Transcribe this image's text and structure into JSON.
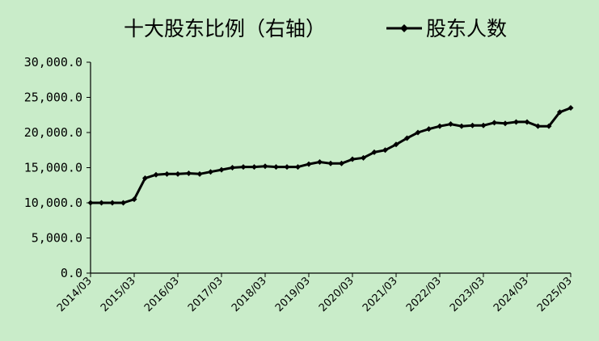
{
  "chart_data": {
    "type": "line",
    "legend": {
      "items": [
        {
          "label": "十大股东比例（右轴）",
          "marker": "none"
        },
        {
          "label": "股东人数",
          "marker": "line-diamond"
        }
      ],
      "position": "top"
    },
    "yaxis": {
      "ticks": [
        "0.0",
        "5,000.0",
        "10,000.0",
        "15,000.0",
        "20,000.0",
        "25,000.0",
        "30,000.0"
      ],
      "ylim": [
        0,
        30000
      ]
    },
    "xaxis": {
      "ticks": [
        "2014/03",
        "2015/03",
        "2016/03",
        "2017/03",
        "2018/03",
        "2019/03",
        "2020/03",
        "2021/03",
        "2022/03",
        "2023/03",
        "2024/03",
        "2025/03"
      ]
    },
    "grid": false,
    "series": [
      {
        "name": "股东人数",
        "color": "#000000",
        "values": [
          10000,
          10000,
          10000,
          10000,
          10500,
          13500,
          14000,
          14100,
          14100,
          14200,
          14100,
          14400,
          14700,
          15000,
          15100,
          15100,
          15200,
          15100,
          15100,
          15100,
          15500,
          15800,
          15600,
          15600,
          16200,
          16400,
          17200,
          17500,
          18300,
          19200,
          20000,
          20500,
          20900,
          21200,
          20900,
          21000,
          21000,
          21400,
          21300,
          21500,
          21500,
          20900,
          20900,
          22900,
          23500
        ]
      }
    ]
  },
  "colors": {
    "background": "#c9ecc9",
    "line": "#000000"
  }
}
